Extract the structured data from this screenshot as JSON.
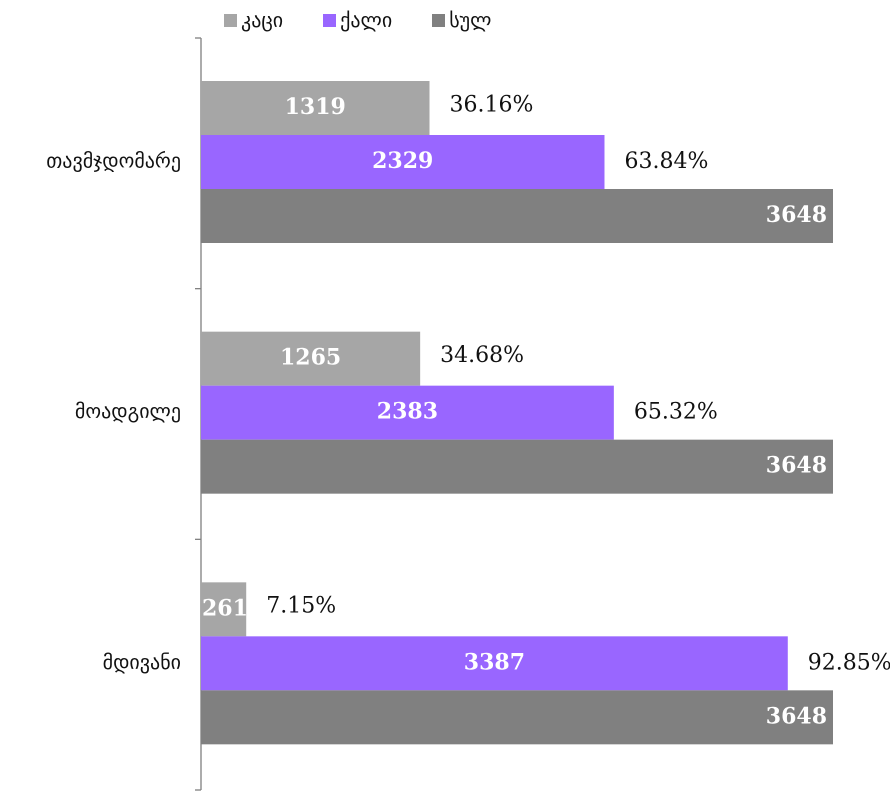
{
  "chart_data": {
    "type": "bar",
    "orientation": "horizontal",
    "categories": [
      "თავმჯდომარე",
      "მოადგილე",
      "მდივანი"
    ],
    "series": [
      {
        "name": "კაცი",
        "color": "#a6a6a6",
        "values": [
          1319,
          1265,
          261
        ],
        "percent_labels": [
          "36.16%",
          "34.68%",
          "7.15%"
        ]
      },
      {
        "name": "ქალი",
        "color": "#9966ff",
        "values": [
          2329,
          2383,
          3387
        ],
        "percent_labels": [
          "63.84%",
          "65.32%",
          "92.85%"
        ]
      },
      {
        "name": "სულ",
        "color": "#808080",
        "values": [
          3648,
          3648,
          3648
        ],
        "percent_labels": [
          "",
          "",
          ""
        ]
      }
    ],
    "xlim": [
      0,
      3648
    ],
    "grid": false,
    "legend_position": "top"
  }
}
